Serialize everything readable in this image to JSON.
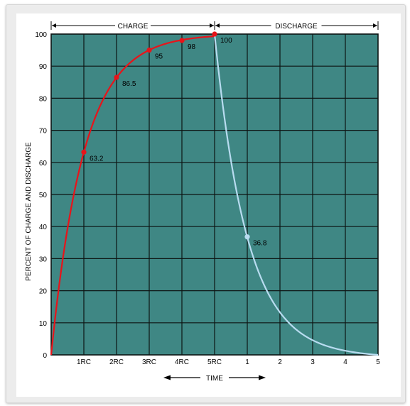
{
  "chart_data": {
    "type": "line",
    "ylabel": "PERCENT OF CHARGE AND DISCHARGE",
    "xlabel": "TIME",
    "ylim": [
      0,
      100
    ],
    "y_ticks": [
      "0",
      "10",
      "20",
      "30",
      "40",
      "50",
      "60",
      "70",
      "80",
      "90",
      "100"
    ],
    "x_ticks": [
      "1RC",
      "2RC",
      "3RC",
      "4RC",
      "5RC",
      "1",
      "2",
      "3",
      "4",
      "5"
    ],
    "grid": true,
    "phases": [
      {
        "name": "CHARGE",
        "from": 0,
        "to": 5
      },
      {
        "name": "DISCHARGE",
        "from": 5,
        "to": 10
      }
    ],
    "series": [
      {
        "color": "#e8141a",
        "points": [
          {
            "x": 1,
            "y": 63.2,
            "label": "63.2"
          },
          {
            "x": 2,
            "y": 86.5,
            "label": "86.5"
          },
          {
            "x": 3,
            "y": 95,
            "label": "95"
          },
          {
            "x": 4,
            "y": 98,
            "label": "98"
          },
          {
            "x": 5,
            "y": 100,
            "label": "100"
          }
        ]
      },
      {
        "color": "#b8dcf0",
        "points": [
          {
            "x": 6,
            "y": 36.8,
            "label": "36.8"
          }
        ]
      }
    ]
  },
  "colors": {
    "plot_bg": "#3f8784",
    "grid": "#0d1413",
    "charge": "#e8141a",
    "discharge": "#b8dcf0"
  }
}
